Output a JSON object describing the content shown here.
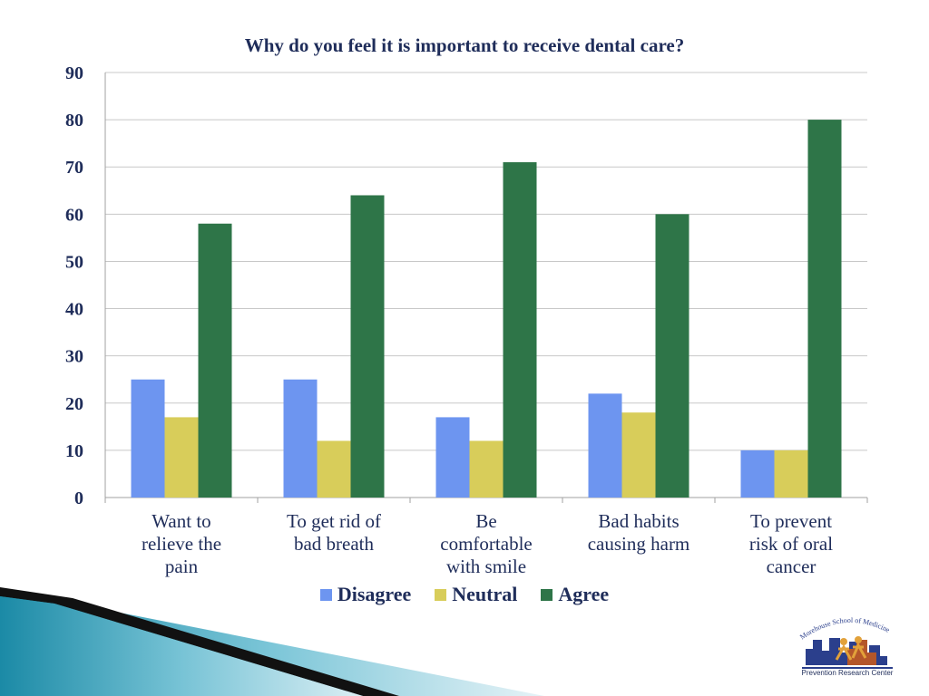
{
  "chart_data": {
    "type": "bar",
    "title": "Why do you feel it is important to receive dental care?",
    "categories": [
      [
        "Want to",
        "relieve the",
        "pain"
      ],
      [
        "To get rid of",
        "bad breath"
      ],
      [
        "Be",
        "comfortable",
        "with smile"
      ],
      [
        "Bad habits",
        "causing harm"
      ],
      [
        "To prevent",
        "risk of oral",
        "cancer"
      ]
    ],
    "series": [
      {
        "name": "Disagree",
        "color": "#6d95f0",
        "values": [
          25,
          25,
          17,
          22,
          10
        ]
      },
      {
        "name": "Neutral",
        "color": "#d8cd5a",
        "values": [
          17,
          12,
          12,
          18,
          10
        ]
      },
      {
        "name": "Agree",
        "color": "#2e7548",
        "values": [
          58,
          64,
          71,
          60,
          80
        ]
      }
    ],
    "ylim": [
      0,
      90
    ],
    "yticks": [
      0,
      10,
      20,
      30,
      40,
      50,
      60,
      70,
      80,
      90
    ],
    "grid": true,
    "legend": "bottom"
  },
  "logo": {
    "text": "Morehouse School of Medicine",
    "caption": "Prevention Research Center"
  }
}
